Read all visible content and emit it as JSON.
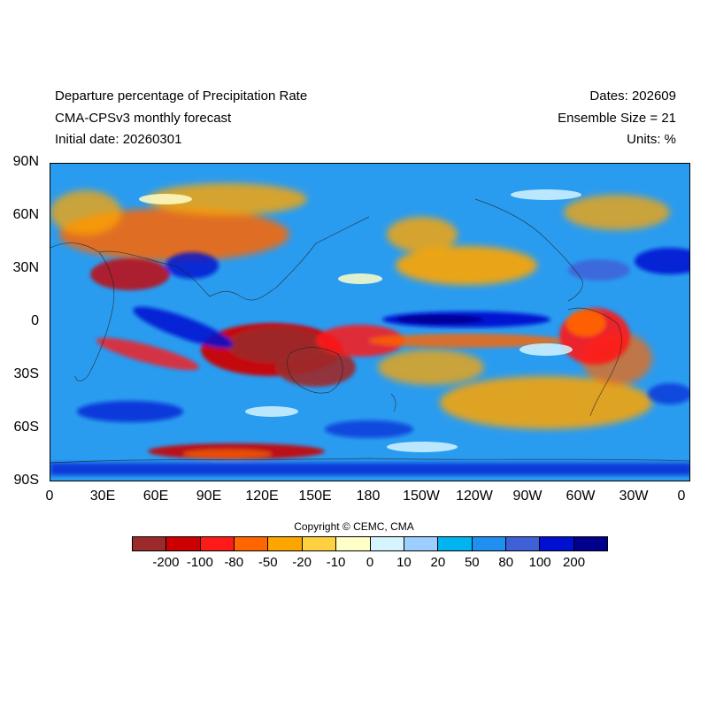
{
  "header": {
    "title_line1": "Departure percentage of Precipitation Rate",
    "title_line2": "CMA-CPSv3 monthly forecast",
    "title_line3": "Initial date: 20260301",
    "dates": "Dates: 202609",
    "ensemble": "Ensemble Size = 21",
    "units": "Units: %"
  },
  "axes": {
    "lat_labels": [
      "90N",
      "60N",
      "30N",
      "0",
      "30S",
      "60S",
      "90S"
    ],
    "lon_labels": [
      "0",
      "30E",
      "60E",
      "90E",
      "120E",
      "150E",
      "180",
      "150W",
      "120W",
      "90W",
      "60W",
      "30W",
      "0"
    ]
  },
  "copyright": "Copyright © CEMC, CMA",
  "colorbar": {
    "colors": [
      "#9c2a2a",
      "#cc0000",
      "#ff1a1a",
      "#ff6600",
      "#ffa500",
      "#ffd040",
      "#ffffc8",
      "#d4f4ff",
      "#9ccfff",
      "#00b4f0",
      "#2090f0",
      "#4060d8",
      "#0010d0",
      "#00008c"
    ],
    "labels": [
      "-200",
      "-100",
      "-80",
      "-50",
      "-20",
      "-10",
      "0",
      "10",
      "20",
      "50",
      "80",
      "100",
      "200"
    ]
  },
  "map": {
    "background_color": "#2a9cf0",
    "features": [
      {
        "name": "tropical-pacific-wet-band",
        "color": "#0010d0"
      },
      {
        "name": "maritime-continent-dry-core",
        "color": "#9c2a2a"
      },
      {
        "name": "southern-ocean-dry-band",
        "color": "#cc0000"
      },
      {
        "name": "south-america-dry",
        "color": "#ff1a1a"
      },
      {
        "name": "north-pacific-orange",
        "color": "#ffa500"
      },
      {
        "name": "north-atlantic-wet",
        "color": "#0010d0"
      }
    ]
  }
}
